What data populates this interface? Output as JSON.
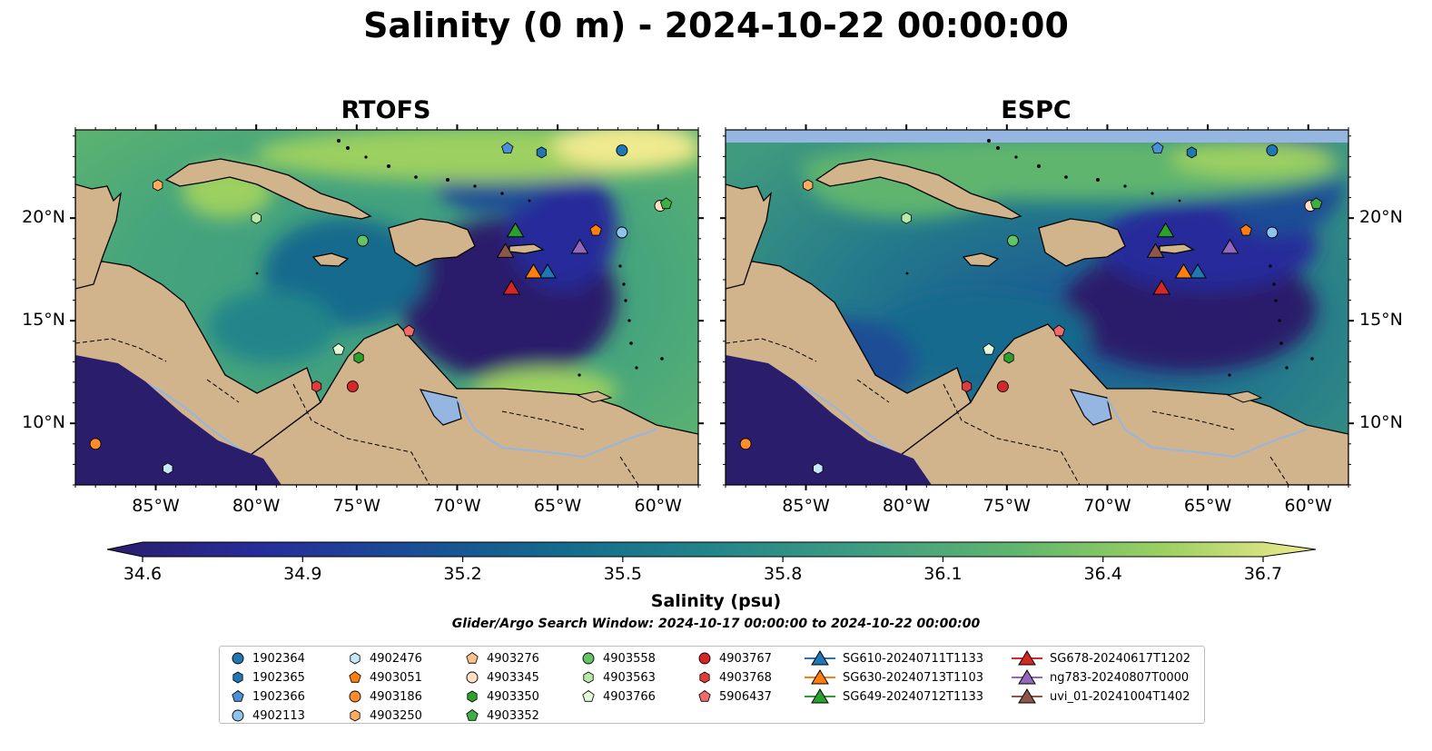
{
  "title": "Salinity (0 m) - 2024-10-22 00:00:00",
  "panels": [
    {
      "title": "RTOFS"
    },
    {
      "title": "ESPC"
    }
  ],
  "axes": {
    "lon_labels": [
      "85°W",
      "80°W",
      "75°W",
      "70°W",
      "65°W",
      "60°W"
    ],
    "lon_values": [
      -85,
      -80,
      -75,
      -70,
      -65,
      -60
    ],
    "lat_labels": [
      "20°N",
      "15°N",
      "10°N"
    ],
    "lat_values": [
      20,
      15,
      10
    ],
    "lon_range": [
      -89,
      -58
    ],
    "lat_range": [
      7,
      24.3
    ]
  },
  "colorbar": {
    "label": "Salinity (psu)",
    "ticks": [
      "34.6",
      "34.9",
      "35.2",
      "35.5",
      "35.8",
      "36.1",
      "36.4",
      "36.7"
    ],
    "range": [
      34.6,
      36.7
    ],
    "extend": "both",
    "colormap": "haline",
    "stops": [
      "#2a1d6b",
      "#272c9a",
      "#1a4d95",
      "#136b8d",
      "#22858a",
      "#3e9c82",
      "#5fb56e",
      "#9cd060",
      "#f1ea8f"
    ]
  },
  "search_window": "Glider/Argo Search Window: 2024-10-17 00:00:00 to 2024-10-22 00:00:00",
  "colors": {
    "land": "#d2b48c",
    "lake": "#94b6e0",
    "missing_band": "#94b6e0"
  },
  "legend": [
    {
      "label": "1902364",
      "marker": "circle",
      "color": "#1f77b4"
    },
    {
      "label": "1902365",
      "marker": "hexagon",
      "color": "#1f77b4"
    },
    {
      "label": "1902366",
      "marker": "pentagon",
      "color": "#4a90d9"
    },
    {
      "label": "4902113",
      "marker": "circle",
      "color": "#8ec3ec"
    },
    {
      "label": "4902476",
      "marker": "hexagon",
      "color": "#c6e7f7"
    },
    {
      "label": "4903051",
      "marker": "pentagon",
      "color": "#ff7f0e"
    },
    {
      "label": "4903186",
      "marker": "circle",
      "color": "#ff8c2a"
    },
    {
      "label": "4903250",
      "marker": "hexagon",
      "color": "#ffab5e"
    },
    {
      "label": "4903276",
      "marker": "pentagon",
      "color": "#ffc08a"
    },
    {
      "label": "4903345",
      "marker": "circle",
      "color": "#ffe0c2"
    },
    {
      "label": "4903350",
      "marker": "hexagon",
      "color": "#2ca02c"
    },
    {
      "label": "4903352",
      "marker": "pentagon",
      "color": "#3cb043"
    },
    {
      "label": "4903558",
      "marker": "circle",
      "color": "#62c462"
    },
    {
      "label": "4903563",
      "marker": "hexagon",
      "color": "#b7eaa8"
    },
    {
      "label": "4903766",
      "marker": "pentagon",
      "color": "#e5f8d8"
    },
    {
      "label": "4903767",
      "marker": "circle",
      "color": "#d62728"
    },
    {
      "label": "4903768",
      "marker": "hexagon",
      "color": "#e03c3c"
    },
    {
      "label": "5906437",
      "marker": "pentagon",
      "color": "#f26b6b"
    },
    {
      "label": "SG610-20240711T1133",
      "marker": "triangle-line",
      "color": "#1f77b4"
    },
    {
      "label": "SG630-20240713T1103",
      "marker": "triangle-line",
      "color": "#ff7f0e"
    },
    {
      "label": "SG649-20240712T1133",
      "marker": "triangle-line",
      "color": "#2ca02c"
    },
    {
      "label": "SG678-20240617T1202",
      "marker": "triangle-line",
      "color": "#d62728"
    },
    {
      "label": "ng783-20240807T0000",
      "marker": "triangle-line",
      "color": "#9467bd"
    },
    {
      "label": "uvi_01-20241004T1402",
      "marker": "triangle-line",
      "color": "#8c564b"
    }
  ],
  "platforms": [
    {
      "label": "1902364",
      "lon": -61.8,
      "lat": 23.3
    },
    {
      "label": "1902365",
      "lon": -65.8,
      "lat": 23.2
    },
    {
      "label": "1902366",
      "lon": -67.5,
      "lat": 23.4
    },
    {
      "label": "4902113",
      "lon": -61.8,
      "lat": 19.3
    },
    {
      "label": "4902476",
      "lon": -84.4,
      "lat": 7.8
    },
    {
      "label": "4903051",
      "lon": -63.1,
      "lat": 19.4
    },
    {
      "label": "4903186",
      "lon": -88.0,
      "lat": 9.0
    },
    {
      "label": "4903250",
      "lon": -84.9,
      "lat": 21.6
    },
    {
      "label": "4903345",
      "lon": -59.9,
      "lat": 20.6
    },
    {
      "label": "4903350",
      "lon": -74.9,
      "lat": 13.2
    },
    {
      "label": "4903352",
      "lon": -59.6,
      "lat": 20.7
    },
    {
      "label": "4903558",
      "lon": -74.7,
      "lat": 18.9
    },
    {
      "label": "4903563",
      "lon": -80.0,
      "lat": 20.0
    },
    {
      "label": "4903766",
      "lon": -75.9,
      "lat": 13.6
    },
    {
      "label": "4903767",
      "lon": -75.2,
      "lat": 11.8
    },
    {
      "label": "4903768",
      "lon": -77.0,
      "lat": 11.8
    },
    {
      "label": "5906437",
      "lon": -72.4,
      "lat": 14.5
    }
  ],
  "gliders": [
    {
      "label": "SG610-20240711T1133",
      "lon": -65.5,
      "lat": 17.4
    },
    {
      "label": "SG630-20240713T1103",
      "lon": -66.2,
      "lat": 17.4
    },
    {
      "label": "SG649-20240712T1133",
      "lon": -67.1,
      "lat": 19.4
    },
    {
      "label": "SG678-20240617T1202",
      "lon": -67.3,
      "lat": 16.6
    },
    {
      "label": "ng783-20240807T0000",
      "lon": -63.9,
      "lat": 18.6
    },
    {
      "label": "uvi_01-20241004T1402",
      "lon": -67.6,
      "lat": 18.4
    }
  ]
}
